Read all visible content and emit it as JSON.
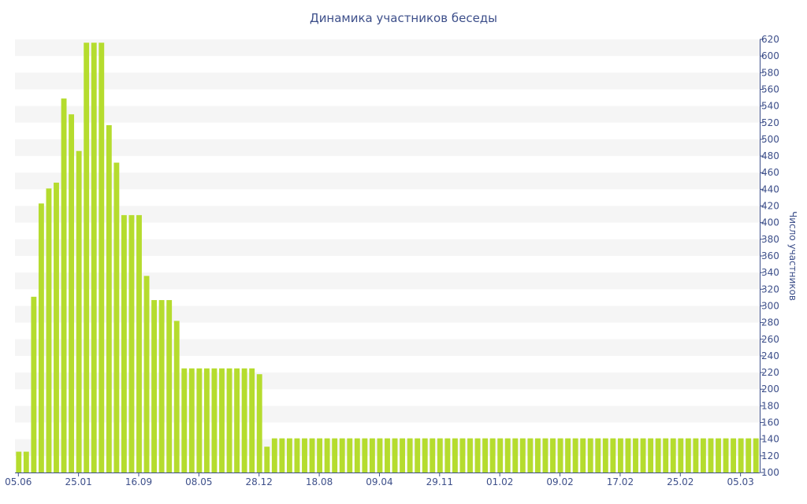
{
  "chart_data": {
    "type": "bar",
    "title": "Динамика участников беседы",
    "xlabel": "",
    "ylabel": "Число участников",
    "ylim": [
      100,
      620
    ],
    "y_ticks": [
      100,
      120,
      140,
      160,
      180,
      200,
      220,
      240,
      260,
      280,
      300,
      320,
      340,
      360,
      380,
      400,
      420,
      440,
      460,
      480,
      500,
      520,
      540,
      560,
      580,
      600,
      620
    ],
    "y_axis_position": "right",
    "x_tick_labels": [
      {
        "index": 0,
        "label": "05.06"
      },
      {
        "index": 8,
        "label": "25.01"
      },
      {
        "index": 16,
        "label": "16.09"
      },
      {
        "index": 24,
        "label": "08.05"
      },
      {
        "index": 32,
        "label": "28.12"
      },
      {
        "index": 40,
        "label": "18.08"
      },
      {
        "index": 48,
        "label": "09.04"
      },
      {
        "index": 56,
        "label": "29.11"
      },
      {
        "index": 64,
        "label": "01.02"
      },
      {
        "index": 72,
        "label": "09.02"
      },
      {
        "index": 80,
        "label": "17.02"
      },
      {
        "index": 88,
        "label": "25.02"
      },
      {
        "index": 96,
        "label": "05.03"
      }
    ],
    "series": [
      {
        "color": "#b5dc2e",
        "values": [
          125,
          125,
          311,
          423,
          441,
          448,
          549,
          530,
          486,
          616,
          616,
          616,
          517,
          472,
          409,
          409,
          409,
          336,
          307,
          307,
          307,
          282,
          225,
          225,
          225,
          225,
          225,
          225,
          225,
          225,
          225,
          225,
          218,
          131,
          141,
          141,
          141,
          141,
          141,
          141,
          141,
          141,
          141,
          141,
          141,
          141,
          141,
          141,
          141,
          141,
          141,
          141,
          141,
          141,
          141,
          141,
          141,
          141,
          141,
          141,
          141,
          141,
          141,
          141,
          141,
          141,
          141,
          141,
          141,
          141,
          141,
          141,
          141,
          141,
          141,
          141,
          141,
          141,
          141,
          141,
          141,
          141,
          141,
          141,
          141,
          141,
          141,
          141,
          141,
          141,
          141,
          141,
          141,
          141,
          141,
          141,
          141,
          141,
          141
        ]
      }
    ],
    "grid": "alternating horizontal bands",
    "colors": {
      "band": "#f5f5f5",
      "axis": "#3d4f8a",
      "text": "#3d4f8a"
    }
  }
}
